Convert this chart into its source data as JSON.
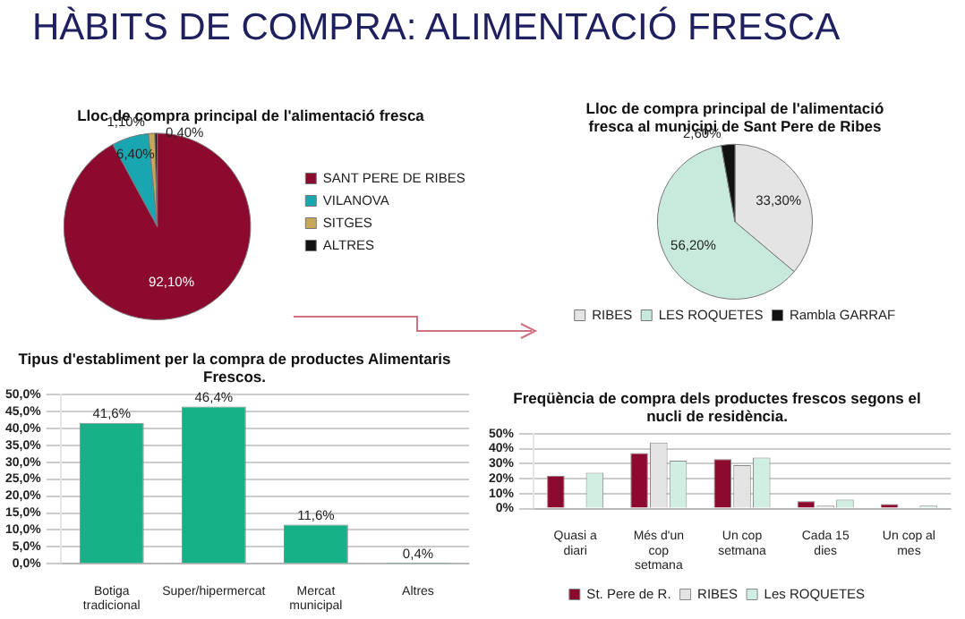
{
  "chart_data": [
    {
      "type": "pie",
      "title": "Lloc de compra principal de l'alimentació fresca",
      "annotations": [
        "HÀBITS DE COMPRA: ALIMENTACIÓ FRESCA"
      ],
      "categories": [
        "SANT PERE DE RIBES",
        "VILANOVA",
        "SITGES",
        "ALTRES"
      ],
      "values": [
        92.1,
        6.4,
        1.1,
        0.4
      ],
      "colors": [
        "#8b0a2e",
        "#1aa6b0",
        "#c8a858",
        "#111111"
      ],
      "value_labels": [
        "92,10%",
        "6,40%",
        "1,10%",
        "0,40%"
      ],
      "legend": "right"
    },
    {
      "type": "pie",
      "title": "Lloc de compra principal de l'alimentació fresca al municipi de Sant Pere de Ribes",
      "categories": [
        "RIBES",
        "LES ROQUETES",
        "Rambla GARRAF"
      ],
      "values": [
        33.3,
        56.2,
        2.6
      ],
      "colors": [
        "#e4e4e4",
        "#c8eadc",
        "#111111"
      ],
      "value_labels": [
        "33,30%",
        "56,20%",
        "2,60%"
      ],
      "legend": "bottom"
    },
    {
      "type": "bar",
      "title": "Tipus d'establiment per la compra de productes Alimentaris Frescos.",
      "categories": [
        "Botiga tradicional",
        "Super/hipermercat",
        "Mercat municipal",
        "Altres"
      ],
      "values": [
        41.6,
        46.4,
        11.6,
        0.4
      ],
      "color": "#17b187",
      "value_labels": [
        "41,6%",
        "46,4%",
        "11,6%",
        "0,4%"
      ],
      "ylim": [
        0,
        50
      ],
      "yticks": [
        {
          "value": 0,
          "label": "0,0%"
        },
        {
          "value": 5,
          "label": "5,0%"
        },
        {
          "value": 10,
          "label": "10,0%"
        },
        {
          "value": 15,
          "label": "15,0%"
        },
        {
          "value": 20,
          "label": "20,0%"
        },
        {
          "value": 25,
          "label": "25,0%"
        },
        {
          "value": 30,
          "label": "30,0%"
        },
        {
          "value": 35,
          "label": "35,0%"
        },
        {
          "value": 40,
          "label": "40,0%"
        },
        {
          "value": 45,
          "label": "45,0%"
        },
        {
          "value": 50,
          "label": "50,0%"
        }
      ],
      "grid": "y",
      "legend": false
    },
    {
      "type": "bar",
      "title": "Freqüència de compra dels productes frescos segons el nucli de residència.",
      "categories": [
        "Quasi a diari",
        "Més d'un cop setmana",
        "Un cop setmana",
        "Cada 15 dies",
        "Un cop al mes"
      ],
      "series": [
        {
          "name": "St. Pere de R.",
          "color": "#8b0a2e",
          "values": [
            22,
            37,
            33,
            5,
            3
          ]
        },
        {
          "name": "RIBES",
          "color": "#e4e4e4",
          "values": [
            null,
            44,
            29,
            2,
            null
          ]
        },
        {
          "name": "Les ROQUETES",
          "color": "#d0eee2",
          "values": [
            24,
            32,
            34,
            6,
            2
          ]
        }
      ],
      "ylim": [
        0,
        50
      ],
      "yticks": [
        {
          "value": 0,
          "label": "0%"
        },
        {
          "value": 10,
          "label": "10%"
        },
        {
          "value": 20,
          "label": "20%"
        },
        {
          "value": 30,
          "label": "30%"
        },
        {
          "value": 40,
          "label": "40%"
        },
        {
          "value": 50,
          "label": "50%"
        }
      ],
      "grid": "y",
      "legend": "bottom"
    }
  ]
}
